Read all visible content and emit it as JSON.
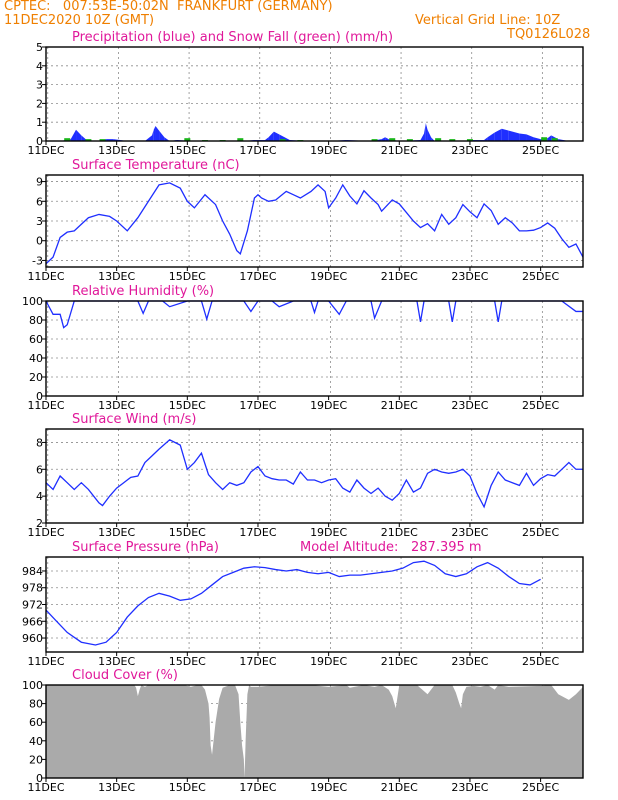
{
  "header": {
    "line1": "CPTEC:   007:53E-50:02N  FRANKFURT (GERMANY)",
    "line2": "11DEC2020 10Z (GMT)",
    "grid_note": "Vertical Grid Line: 10Z",
    "code": "TQ0126L028"
  },
  "colors": {
    "header": "#ef7f00",
    "panel_title": "#e0189a",
    "line": "#1f2fff",
    "rain": "#1f2fff",
    "snow": "#19b519",
    "cloud": "#aaaaaa",
    "grid": "#8c8c8c"
  },
  "chart_data": [
    {
      "id": "precipitation",
      "type": "area",
      "title": "Precipitation (blue) and Snow Fall (green) (mm/h)",
      "ylim": [
        0,
        5
      ],
      "yticks": [
        0,
        1,
        2,
        3,
        4,
        5
      ],
      "xlabels": [
        "11DEC",
        "13DEC",
        "15DEC",
        "17DEC",
        "19DEC",
        "21DEC",
        "23DEC",
        "25DEC"
      ],
      "x_days": [
        0,
        2,
        4,
        6,
        8,
        10,
        12,
        14
      ],
      "series": [
        {
          "name": "Precipitation",
          "x": [
            0.4,
            0.7,
            0.85,
            1.0,
            1.15,
            1.5,
            1.7,
            1.9,
            2.1,
            2.3,
            2.8,
            3.0,
            3.05,
            3.1,
            3.2,
            3.35,
            3.5,
            3.7,
            4.2,
            5.6,
            5.9,
            6.2,
            6.3,
            6.45,
            6.6,
            6.9,
            7.4,
            8.0,
            8.5,
            9.2,
            9.5,
            9.6,
            9.7,
            10.0,
            10.6,
            10.7,
            10.75,
            10.8,
            10.9,
            11.0,
            11.8,
            12.1,
            12.4,
            12.5,
            12.7,
            12.9,
            13.1,
            13.4,
            13.6,
            13.8,
            14.0,
            14.2,
            14.3,
            14.5,
            14.8
          ],
          "y": [
            0,
            0.1,
            0.6,
            0.3,
            0.05,
            0,
            0.1,
            0.1,
            0.05,
            0,
            0,
            0.3,
            0.6,
            0.8,
            0.55,
            0.2,
            0,
            0.05,
            0,
            0,
            0.05,
            0.05,
            0.2,
            0.5,
            0.35,
            0.05,
            0,
            0,
            0.05,
            0,
            0.1,
            0.2,
            0.1,
            0,
            0.05,
            0.4,
            0.95,
            0.6,
            0.2,
            0,
            0,
            0.05,
            0.05,
            0.2,
            0.45,
            0.65,
            0.55,
            0.4,
            0.35,
            0.2,
            0.1,
            0.15,
            0.3,
            0.1,
            0
          ]
        },
        {
          "name": "Snow Fall",
          "x": [
            0.6,
            1.2,
            1.6,
            4.0,
            4.5,
            5.0,
            5.5,
            6.7,
            7.2,
            9.3,
            9.8,
            10.3,
            11.1,
            11.5,
            12.0,
            14.1,
            14.4
          ],
          "y": [
            0.15,
            0.1,
            0.1,
            0.15,
            0.05,
            0.05,
            0.15,
            0.1,
            0.05,
            0.1,
            0.15,
            0.1,
            0.15,
            0.1,
            0.1,
            0.2,
            0.15
          ]
        }
      ]
    },
    {
      "id": "temperature",
      "type": "line",
      "title": "Surface Temperature (nC)",
      "ylim": [
        -4,
        10
      ],
      "yticks": [
        -3,
        0,
        3,
        6,
        9
      ],
      "x": [
        0,
        0.2,
        0.4,
        0.6,
        0.8,
        1.0,
        1.2,
        1.5,
        1.8,
        2.0,
        2.3,
        2.6,
        2.9,
        3.2,
        3.5,
        3.8,
        4.0,
        4.2,
        4.5,
        4.8,
        5.0,
        5.2,
        5.4,
        5.5,
        5.7,
        5.9,
        6.0,
        6.1,
        6.3,
        6.5,
        6.8,
        7.0,
        7.2,
        7.5,
        7.7,
        7.9,
        8.0,
        8.2,
        8.4,
        8.6,
        8.8,
        9.0,
        9.2,
        9.4,
        9.5,
        9.8,
        10.0,
        10.2,
        10.4,
        10.6,
        10.8,
        11.0,
        11.2,
        11.4,
        11.6,
        11.8,
        12.0,
        12.2,
        12.4,
        12.6,
        12.8,
        13.0,
        13.2,
        13.4,
        13.6,
        13.8,
        14.0,
        14.2,
        14.4,
        14.6,
        14.8,
        15.0,
        15.2
      ],
      "y": [
        -3.5,
        -2.5,
        0.5,
        1.3,
        1.5,
        2.5,
        3.5,
        4,
        3.7,
        3,
        1.5,
        3.5,
        6,
        8.5,
        8.8,
        8,
        6,
        5,
        7,
        5.5,
        3,
        1,
        -1.5,
        -2,
        1.5,
        6.5,
        7,
        6.5,
        6,
        6.2,
        7.5,
        7,
        6.5,
        7.5,
        8.5,
        7.5,
        5,
        6.5,
        8.5,
        6.8,
        5.6,
        7.6,
        6.5,
        5.5,
        4.5,
        6.2,
        5.6,
        4.3,
        3,
        2,
        2.6,
        1.5,
        4,
        2.5,
        3.5,
        5.5,
        4.4,
        3.5,
        5.6,
        4.6,
        2.5,
        3.5,
        2.7,
        1.5,
        1.5,
        1.6,
        2,
        2.7,
        1.9,
        0.3,
        -1,
        -0.5,
        -2.5
      ]
    },
    {
      "id": "humidity",
      "type": "line",
      "title": "Relative Humidity (%)",
      "ylim": [
        0,
        100
      ],
      "yticks": [
        0,
        20,
        40,
        60,
        80,
        100
      ],
      "x": [
        0,
        0.2,
        0.4,
        0.5,
        0.6,
        0.8,
        1.0,
        1.5,
        2.0,
        2.6,
        2.75,
        2.9,
        3.3,
        3.5,
        4.0,
        4.4,
        4.55,
        4.7,
        5.0,
        5.6,
        5.8,
        6.0,
        6.4,
        6.6,
        7.0,
        7.5,
        7.6,
        7.7,
        8.0,
        8.3,
        8.5,
        9.2,
        9.3,
        9.5,
        10.0,
        10.5,
        10.6,
        10.7,
        11.0,
        11.4,
        11.5,
        11.6,
        11.9,
        12.7,
        12.8,
        12.9,
        13.3,
        14.0,
        14.6,
        15.0,
        15.2
      ],
      "y": [
        100,
        86,
        86,
        72,
        75,
        100,
        100,
        100,
        100,
        100,
        87,
        100,
        100,
        94,
        100,
        100,
        81,
        100,
        100,
        100,
        89,
        100,
        100,
        94,
        100,
        100,
        88,
        100,
        100,
        86,
        100,
        100,
        82,
        100,
        100,
        100,
        78,
        100,
        100,
        100,
        78,
        100,
        100,
        100,
        78,
        100,
        100,
        100,
        100,
        89,
        89
      ]
    },
    {
      "id": "wind",
      "type": "line",
      "title": "Surface Wind (m/s)",
      "ylim": [
        2,
        9
      ],
      "yticks": [
        2,
        4,
        6,
        8
      ],
      "x": [
        0,
        0.2,
        0.4,
        0.6,
        0.8,
        1.0,
        1.2,
        1.5,
        1.6,
        1.8,
        2.0,
        2.2,
        2.4,
        2.6,
        2.8,
        3.0,
        3.2,
        3.5,
        3.8,
        4.0,
        4.2,
        4.4,
        4.6,
        4.8,
        5.0,
        5.2,
        5.4,
        5.6,
        5.8,
        6.0,
        6.2,
        6.4,
        6.6,
        6.8,
        7.0,
        7.2,
        7.4,
        7.6,
        7.8,
        8.0,
        8.2,
        8.4,
        8.6,
        8.8,
        9.0,
        9.2,
        9.4,
        9.6,
        9.8,
        10.0,
        10.2,
        10.4,
        10.6,
        10.8,
        11.0,
        11.2,
        11.4,
        11.6,
        11.8,
        12.0,
        12.2,
        12.4,
        12.6,
        12.8,
        13.0,
        13.2,
        13.4,
        13.6,
        13.8,
        14.0,
        14.2,
        14.4,
        14.6,
        14.8,
        15.0,
        15.2
      ],
      "y": [
        5,
        4.5,
        5.5,
        5,
        4.5,
        5,
        4.5,
        3.5,
        3.3,
        4,
        4.6,
        5,
        5.4,
        5.5,
        6.5,
        7,
        7.5,
        8.2,
        7.8,
        6,
        6.5,
        7.2,
        5.6,
        5,
        4.5,
        5,
        4.8,
        5,
        5.8,
        6.2,
        5.5,
        5.3,
        5.2,
        5.2,
        4.9,
        5.8,
        5.2,
        5.2,
        5,
        5.2,
        5.3,
        4.6,
        4.3,
        5.2,
        4.6,
        4.2,
        4.6,
        4,
        3.7,
        4.2,
        5.2,
        4.3,
        4.6,
        5.7,
        6,
        5.8,
        5.7,
        5.8,
        6,
        5.5,
        4.2,
        3.2,
        4.8,
        5.8,
        5.2,
        5,
        4.8,
        5.7,
        4.8,
        5.3,
        5.6,
        5.5,
        6,
        6.5,
        6,
        6
      ]
    },
    {
      "id": "pressure",
      "type": "line",
      "title": "Surface Pressure (hPa)",
      "annotation_label": "Model Altitude:",
      "annotation_value": "287.395 m",
      "ylim": [
        955,
        989
      ],
      "yticks": [
        960,
        966,
        972,
        978,
        984
      ],
      "x": [
        0,
        0.3,
        0.6,
        1.0,
        1.4,
        1.7,
        2.0,
        2.3,
        2.6,
        2.9,
        3.2,
        3.5,
        3.8,
        4.1,
        4.4,
        4.7,
        5.0,
        5.3,
        5.6,
        5.9,
        6.2,
        6.5,
        6.8,
        7.1,
        7.4,
        7.7,
        8.0,
        8.3,
        8.6,
        8.9,
        9.2,
        9.5,
        9.8,
        10.1,
        10.4,
        10.7,
        11.0,
        11.3,
        11.6,
        11.9,
        12.2,
        12.5,
        12.8,
        13.1,
        13.4,
        13.7,
        14.0
      ],
      "y": [
        970,
        966,
        962,
        958.5,
        957.5,
        958.5,
        962,
        967.5,
        971.5,
        974.5,
        976,
        975,
        973.5,
        974,
        976,
        979,
        982,
        983.5,
        985,
        985.5,
        985.2,
        984.5,
        984,
        984.5,
        983.5,
        983,
        983.5,
        982,
        982.5,
        982.5,
        983,
        983.5,
        984,
        985,
        987,
        987.5,
        986,
        983,
        982,
        983,
        985.5,
        987,
        985,
        982,
        979.5,
        979,
        981
      ]
    },
    {
      "id": "cloud",
      "type": "area",
      "title": "Cloud Cover (%)",
      "ylim": [
        0,
        100
      ],
      "yticks": [
        0,
        20,
        40,
        60,
        80,
        100
      ],
      "x": [
        0,
        2.0,
        2.5,
        2.55,
        2.6,
        2.65,
        2.7,
        2.8,
        2.9,
        3.0,
        3.9,
        4.1,
        4.3,
        4.4,
        4.5,
        4.6,
        4.63,
        4.66,
        4.7,
        4.8,
        4.9,
        5.0,
        5.2,
        5.35,
        5.45,
        5.5,
        5.55,
        5.6,
        5.62,
        5.65,
        5.7,
        5.75,
        5.8,
        6.0,
        6.5,
        7.5,
        8.0,
        8.5,
        8.6,
        9.0,
        9.3,
        9.5,
        9.7,
        9.8,
        9.9,
        10.0,
        10.5,
        10.8,
        11.0,
        11.5,
        11.6,
        11.7,
        11.75,
        11.8,
        11.9,
        12.1,
        12.3,
        12.5,
        12.7,
        12.8,
        13.1,
        14.0,
        14.3,
        14.5,
        14.8,
        15.0,
        15.2
      ],
      "y": [
        100,
        100,
        100,
        97,
        88,
        95,
        100,
        98,
        100,
        100,
        100,
        98,
        100,
        100,
        95,
        80,
        65,
        35,
        25,
        60,
        85,
        97,
        100,
        100,
        90,
        60,
        35,
        20,
        0,
        40,
        90,
        100,
        98,
        98,
        100,
        100,
        98,
        100,
        97,
        100,
        98,
        100,
        95,
        88,
        75,
        100,
        100,
        90,
        100,
        100,
        92,
        80,
        75,
        90,
        98,
        99,
        98,
        100,
        95,
        100,
        98,
        99,
        100,
        90,
        84,
        90,
        98
      ]
    }
  ]
}
